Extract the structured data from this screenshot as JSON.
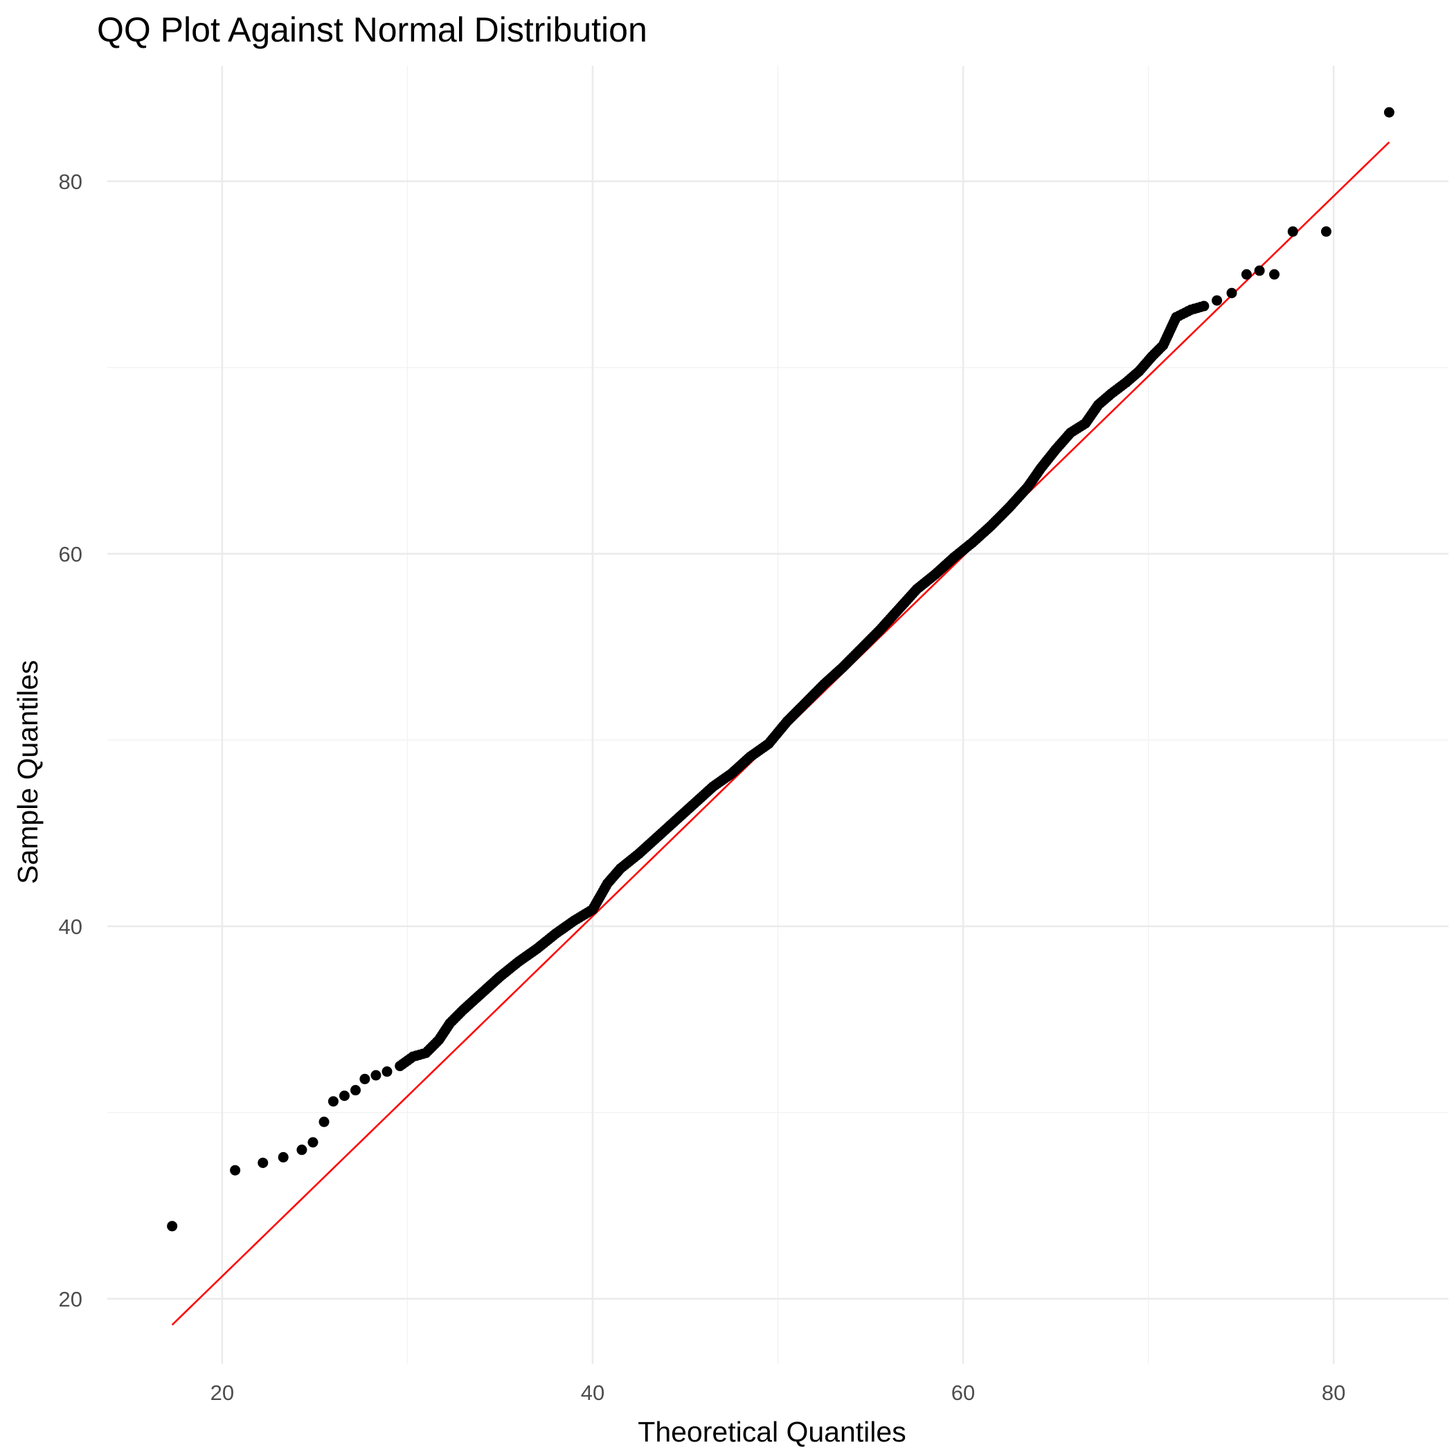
{
  "chart_data": {
    "type": "scatter",
    "title": "QQ Plot Against Normal Distribution",
    "xlabel": "Theoretical Quantiles",
    "ylabel": "Sample Quantiles",
    "xlim": [
      13.8,
      86.2
    ],
    "ylim": [
      16.5,
      86.2
    ],
    "x_ticks": [
      20,
      40,
      60,
      80
    ],
    "y_ticks": [
      20,
      40,
      60,
      80
    ],
    "grid": true,
    "legend": "none",
    "colors": {
      "points": "#000000",
      "reference_line": "#ff0000",
      "grid": "#ebebeb"
    },
    "reference_line": {
      "x": [
        17.3,
        83.0
      ],
      "y": [
        18.6,
        82.1
      ]
    },
    "series": [
      {
        "kind": "points",
        "points": [
          [
            17.3,
            23.9
          ],
          [
            20.7,
            26.9
          ],
          [
            22.2,
            27.3
          ],
          [
            23.3,
            27.6
          ],
          [
            24.3,
            28.0
          ],
          [
            24.9,
            28.4
          ],
          [
            25.5,
            29.5
          ],
          [
            26.0,
            30.6
          ],
          [
            26.6,
            30.9
          ],
          [
            27.2,
            31.2
          ],
          [
            27.7,
            31.8
          ],
          [
            28.3,
            32.0
          ],
          [
            28.9,
            32.2
          ],
          [
            29.6,
            32.5
          ],
          [
            30.3,
            33.0
          ],
          [
            31.0,
            33.2
          ],
          [
            31.7,
            33.9
          ],
          [
            32.3,
            34.8
          ],
          [
            33.0,
            35.5
          ],
          [
            34.0,
            36.4
          ],
          [
            35.0,
            37.3
          ],
          [
            36.0,
            38.1
          ],
          [
            37.0,
            38.8
          ],
          [
            38.0,
            39.6
          ],
          [
            39.0,
            40.3
          ],
          [
            40.0,
            40.9
          ],
          [
            40.8,
            42.3
          ],
          [
            41.5,
            43.1
          ],
          [
            42.5,
            43.9
          ],
          [
            43.5,
            44.8
          ],
          [
            44.5,
            45.7
          ],
          [
            45.5,
            46.6
          ],
          [
            46.5,
            47.5
          ],
          [
            47.5,
            48.2
          ],
          [
            48.5,
            49.1
          ],
          [
            49.5,
            49.8
          ],
          [
            50.5,
            51.0
          ],
          [
            51.5,
            52.0
          ],
          [
            52.5,
            53.0
          ],
          [
            53.5,
            53.9
          ],
          [
            54.5,
            54.9
          ],
          [
            55.5,
            55.9
          ],
          [
            56.5,
            57.0
          ],
          [
            57.5,
            58.1
          ],
          [
            58.5,
            58.9
          ],
          [
            59.5,
            59.8
          ],
          [
            60.5,
            60.6
          ],
          [
            61.5,
            61.5
          ],
          [
            62.5,
            62.5
          ],
          [
            63.5,
            63.6
          ],
          [
            64.2,
            64.6
          ],
          [
            65.0,
            65.6
          ],
          [
            65.8,
            66.5
          ],
          [
            66.6,
            67.0
          ],
          [
            67.3,
            68.0
          ],
          [
            68.0,
            68.6
          ],
          [
            68.8,
            69.2
          ],
          [
            69.5,
            69.8
          ],
          [
            70.2,
            70.6
          ],
          [
            70.8,
            71.2
          ],
          [
            71.5,
            72.7
          ],
          [
            72.3,
            73.1
          ],
          [
            73.0,
            73.3
          ],
          [
            73.7,
            73.6
          ],
          [
            74.5,
            74.0
          ],
          [
            75.3,
            75.0
          ],
          [
            76.0,
            75.2
          ],
          [
            76.8,
            75.0
          ],
          [
            77.8,
            77.3
          ],
          [
            79.6,
            77.3
          ],
          [
            83.0,
            83.7
          ]
        ]
      }
    ]
  }
}
